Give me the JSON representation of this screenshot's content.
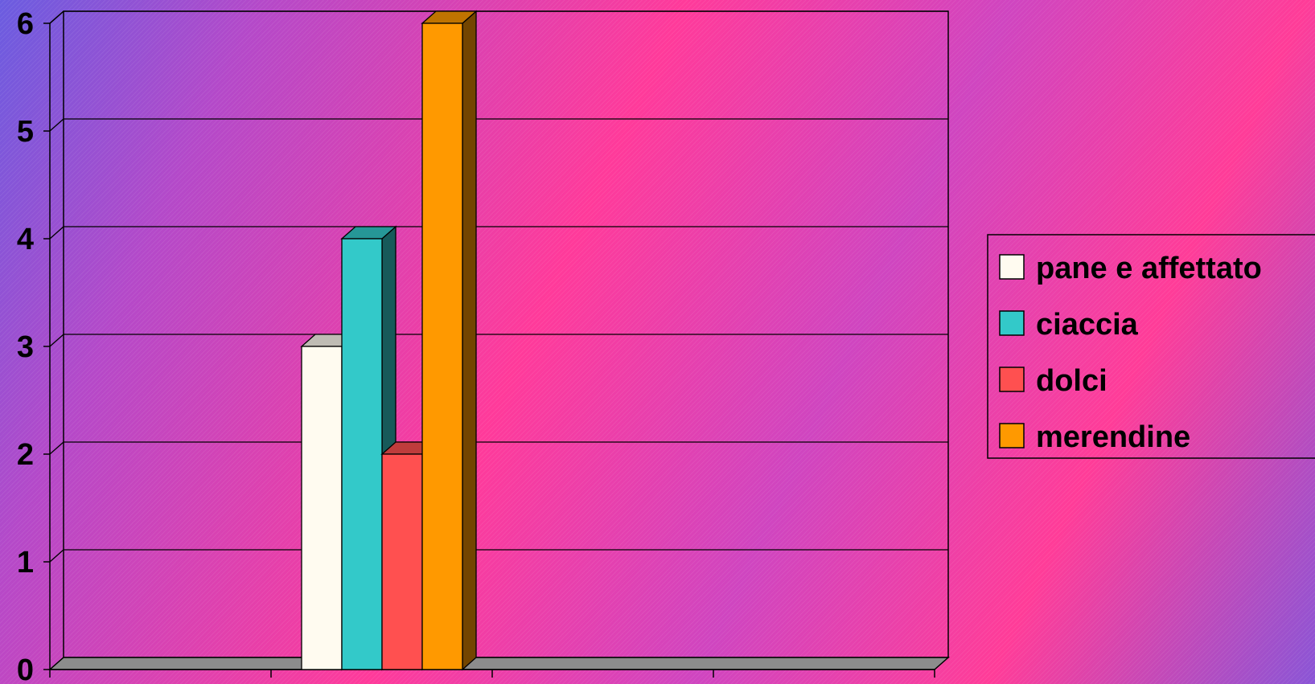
{
  "chart_data": {
    "type": "bar",
    "categories": [
      ""
    ],
    "series": [
      {
        "name": "pane e affettato",
        "values": [
          3
        ],
        "color": "#fffbf0"
      },
      {
        "name": "ciaccia",
        "values": [
          4
        ],
        "color": "#33c9c9"
      },
      {
        "name": "dolci",
        "values": [
          2
        ],
        "color": "#ff5050"
      },
      {
        "name": "merendine",
        "values": [
          6
        ],
        "color": "#ff9900"
      }
    ],
    "y_ticks": [
      "0",
      "1",
      "2",
      "3",
      "4",
      "5",
      "6"
    ],
    "ylim": [
      0,
      6
    ],
    "grid": true,
    "legend_position": "right",
    "style": "3d-clustered-column",
    "title": "",
    "xlabel": "",
    "ylabel": ""
  }
}
